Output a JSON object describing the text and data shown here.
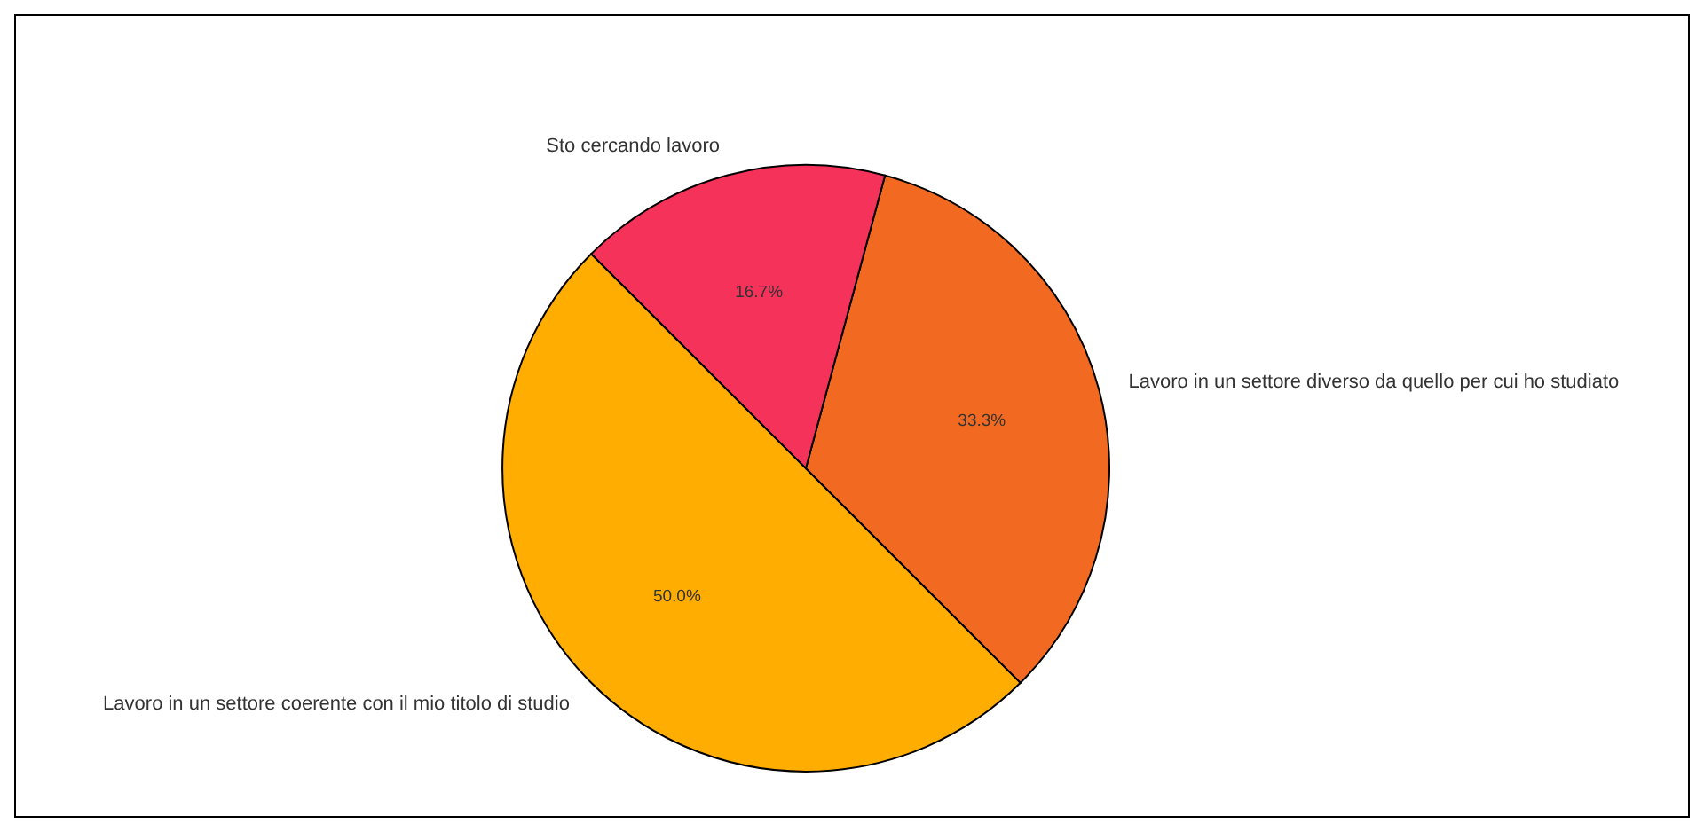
{
  "chart_data": {
    "type": "pie",
    "categories": [
      "Lavoro in un settore coerente con il mio titolo di studio",
      "Lavoro in un settore diverso da quello per cui ho studiato",
      "Sto cercando lavoro"
    ],
    "values": [
      50,
      33.3,
      16.7
    ],
    "colors": [
      "#ffad00",
      "#f26a22",
      "#f5325a"
    ],
    "value_labels": [
      "50.0%",
      "33.3%",
      "16.7%"
    ],
    "legend": false
  }
}
